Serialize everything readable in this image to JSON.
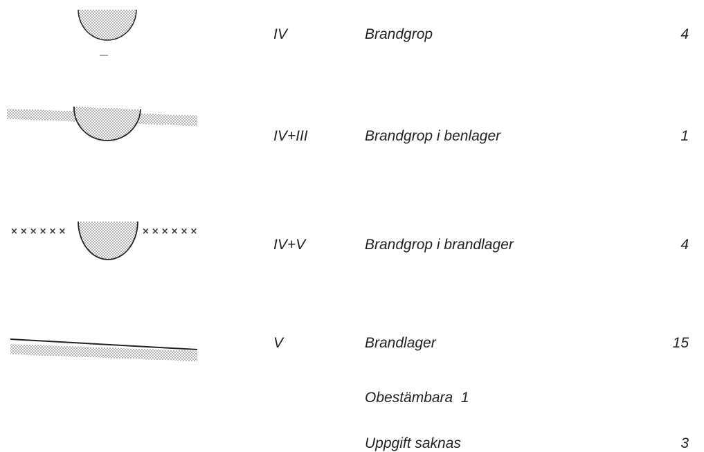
{
  "rows": [
    {
      "code": "IV",
      "label": "Brandgrop",
      "count": 4
    },
    {
      "code": "IV+III",
      "label": "Brandgrop i benlager",
      "count": 1
    },
    {
      "code": "IV+V",
      "label": "Brandgrop i brandlager",
      "count": 4
    },
    {
      "code": "V",
      "label": "Brandlager",
      "count": 15
    },
    {
      "label": "Obestämbara",
      "count": 1
    },
    {
      "label": "Uppgift saknas",
      "count": 3
    }
  ]
}
